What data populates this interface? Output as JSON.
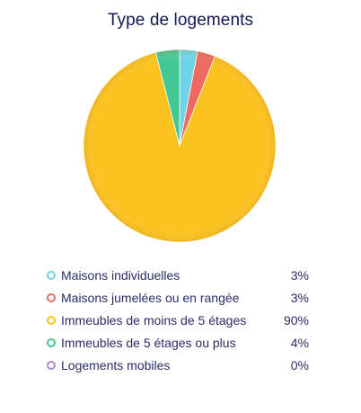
{
  "chart_data": {
    "type": "pie",
    "title": "Type de logements",
    "categories": [
      "Maisons individuelles",
      "Maisons jumelées ou en rangée",
      "Immeubles de moins de 5 étages",
      "Immeubles de 5 étages ou plus",
      "Logements mobiles"
    ],
    "values": [
      3,
      3,
      90,
      4,
      0
    ],
    "value_labels": [
      "3%",
      "3%",
      "90%",
      "4%",
      "0%"
    ],
    "colors": [
      "#6fd3e8",
      "#ee6a62",
      "#fcc21f",
      "#43c795",
      "#b189cf"
    ],
    "legend_position": "bottom"
  }
}
